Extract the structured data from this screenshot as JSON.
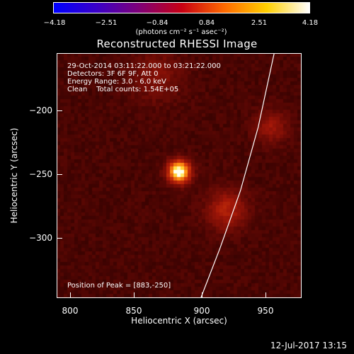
{
  "colorbar": {
    "ticks": [
      "−4.18",
      "−2.51",
      "−0.84",
      "0.84",
      "2.51",
      "4.18"
    ],
    "tick_values": [
      -4.18,
      -2.51,
      -0.84,
      0.84,
      2.51,
      4.18
    ],
    "unit": "(photons cm⁻² s⁻¹ asec⁻²)",
    "colors": [
      "#0000ff",
      "#3a00c8",
      "#800078",
      "#c80014",
      "#ff6a00",
      "#ffd000",
      "#ffffff"
    ]
  },
  "chart_data": {
    "type": "heatmap",
    "title": "Reconstructed RHESSI Image",
    "xlabel": "Heliocentric X (arcsec)",
    "ylabel": "Heliocentric Y (arcsec)",
    "xlim": [
      787,
      979
    ],
    "ylim": [
      -349,
      -157
    ],
    "xticks": [
      800,
      850,
      900,
      950
    ],
    "yticks": [
      -200,
      -250,
      -300
    ],
    "colorbar_range": [
      -4.18,
      4.18
    ],
    "info_lines": [
      "29-Oct-2014 03:11:22.000 to 03:21:22.000",
      "Detectors: 3F 6F 9F, Att 0",
      "Energy Range: 3.0 - 6.0 keV",
      "Clean    Total counts: 1.54E+05"
    ],
    "peak_annotation": "Position of Peak = [883,-250]",
    "peak": {
      "x": 883,
      "y": -250
    },
    "limb_points": [
      [
        957.5,
        -157
      ],
      [
        945,
        -215
      ],
      [
        931,
        -265
      ],
      [
        915,
        -310
      ],
      [
        900,
        -349
      ]
    ],
    "sources": [
      {
        "x": 883,
        "y": -250,
        "peak": 4.18,
        "width": 6
      },
      {
        "x": 920,
        "y": -280,
        "peak": 1.3,
        "width": 11
      },
      {
        "x": 955,
        "y": -215,
        "peak": 1.0,
        "width": 9
      },
      {
        "x": 865,
        "y": -175,
        "peak": 0.7,
        "width": 14
      }
    ],
    "background_level": 0.2
  },
  "timestamp": "12-Jul-2017 13:15"
}
